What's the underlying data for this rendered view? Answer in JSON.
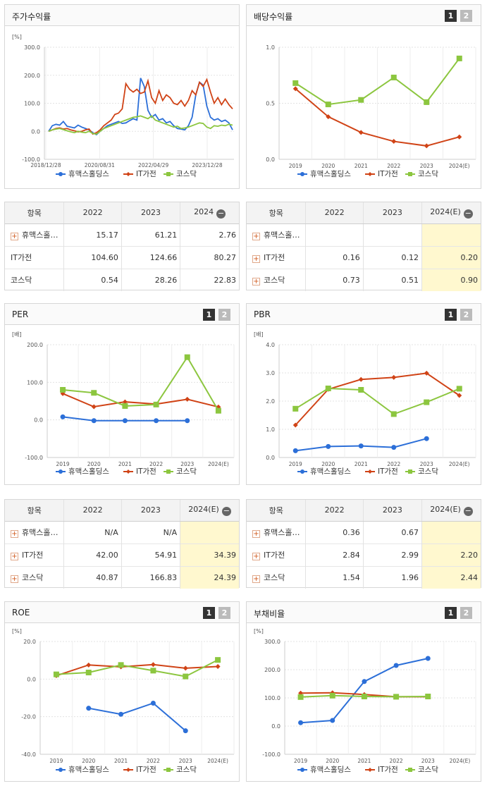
{
  "colors": {
    "humax": "#2c6fd8",
    "it": "#d04316",
    "kosdaq": "#8cc63f"
  },
  "legend": [
    "휴맥스홀딩스",
    "IT가전",
    "코스닥"
  ],
  "pager": [
    "1",
    "2"
  ],
  "minus_icon": "−",
  "plus_icon": "+",
  "panels": {
    "stock": {
      "title": "주가수익률"
    },
    "dividend": {
      "title": "배당수익률"
    },
    "per": {
      "title": "PER"
    },
    "pbr": {
      "title": "PBR"
    },
    "roe": {
      "title": "ROE"
    },
    "debt": {
      "title": "부채비율"
    }
  },
  "tables": {
    "stock": {
      "headers": [
        "항목",
        "2022",
        "2023",
        "2024"
      ],
      "rows": [
        {
          "name": "휴맥스홀…",
          "plus": true,
          "values": [
            "15.17",
            "61.21",
            "2.76"
          ]
        },
        {
          "name": "IT가전",
          "plus": false,
          "values": [
            "104.60",
            "124.66",
            "80.27"
          ]
        },
        {
          "name": "코스닥",
          "plus": false,
          "values": [
            "0.54",
            "28.26",
            "22.83"
          ]
        }
      ],
      "highlight": false
    },
    "dividend": {
      "headers": [
        "항목",
        "2022",
        "2023",
        "2024(E)"
      ],
      "rows": [
        {
          "name": "휴맥스홀…",
          "plus": true,
          "values": [
            "",
            "",
            ""
          ]
        },
        {
          "name": "IT가전",
          "plus": true,
          "values": [
            "0.16",
            "0.12",
            "0.20"
          ]
        },
        {
          "name": "코스닥",
          "plus": true,
          "values": [
            "0.73",
            "0.51",
            "0.90"
          ]
        }
      ],
      "highlight": true
    },
    "per": {
      "headers": [
        "항목",
        "2022",
        "2023",
        "2024(E)"
      ],
      "rows": [
        {
          "name": "휴맥스홀…",
          "plus": true,
          "values": [
            "N/A",
            "N/A",
            ""
          ]
        },
        {
          "name": "IT가전",
          "plus": true,
          "values": [
            "42.00",
            "54.91",
            "34.39"
          ]
        },
        {
          "name": "코스닥",
          "plus": true,
          "values": [
            "40.87",
            "166.83",
            "24.39"
          ]
        }
      ],
      "highlight": true
    },
    "pbr": {
      "headers": [
        "항목",
        "2022",
        "2023",
        "2024(E)"
      ],
      "rows": [
        {
          "name": "휴맥스홀…",
          "plus": true,
          "values": [
            "0.36",
            "0.67",
            ""
          ]
        },
        {
          "name": "IT가전",
          "plus": true,
          "values": [
            "2.84",
            "2.99",
            "2.20"
          ]
        },
        {
          "name": "코스닥",
          "plus": true,
          "values": [
            "1.54",
            "1.96",
            "2.44"
          ]
        }
      ],
      "highlight": true
    }
  },
  "chart_data": [
    {
      "id": "stock",
      "type": "line",
      "ylabel": "[%]",
      "yticks": [
        "300.0",
        "200.0",
        "100.0",
        "0.0",
        "-100.0"
      ],
      "ylim": [
        -100,
        300
      ],
      "xticks": [
        "2018/12/28",
        "2020/08/31",
        "2022/04/29",
        "2023/12/28"
      ],
      "series": [
        {
          "name": "휴맥스홀딩스",
          "values": [
            0,
            20,
            25,
            22,
            35,
            18,
            15,
            12,
            22,
            15,
            10,
            5,
            -5,
            -12,
            0,
            10,
            20,
            25,
            30,
            35,
            28,
            30,
            38,
            45,
            40,
            190,
            160,
            75,
            50,
            60,
            40,
            45,
            30,
            35,
            20,
            10,
            8,
            5,
            20,
            50,
            130,
            175,
            165,
            90,
            50,
            40,
            45,
            35,
            40,
            30,
            5
          ]
        },
        {
          "name": "IT가전",
          "values": [
            0,
            5,
            10,
            12,
            8,
            10,
            5,
            2,
            -2,
            0,
            5,
            8,
            -10,
            -5,
            5,
            20,
            30,
            40,
            60,
            65,
            80,
            170,
            150,
            140,
            150,
            135,
            140,
            180,
            120,
            100,
            145,
            110,
            130,
            120,
            100,
            95,
            110,
            90,
            110,
            145,
            130,
            175,
            160,
            185,
            140,
            100,
            120,
            95,
            115,
            95,
            80
          ]
        },
        {
          "name": "코스닥",
          "values": [
            0,
            5,
            8,
            10,
            6,
            2,
            -2,
            -5,
            0,
            -3,
            -5,
            0,
            -8,
            -10,
            0,
            10,
            15,
            20,
            25,
            30,
            35,
            40,
            45,
            50,
            52,
            55,
            50,
            45,
            55,
            40,
            35,
            30,
            25,
            20,
            15,
            18,
            10,
            12,
            15,
            20,
            25,
            30,
            28,
            15,
            10,
            20,
            18,
            22,
            20,
            25,
            22
          ]
        }
      ]
    },
    {
      "id": "dividend",
      "type": "line",
      "yticks": [
        "1.0",
        "0.5",
        "0.0"
      ],
      "ylim": [
        0,
        1
      ],
      "categories": [
        "2019",
        "2020",
        "2021",
        "2022",
        "2023",
        "2024(E)"
      ],
      "series": [
        {
          "name": "휴맥스홀딩스",
          "values": [
            null,
            null,
            null,
            null,
            null,
            null
          ]
        },
        {
          "name": "IT가전",
          "values": [
            0.63,
            0.38,
            0.24,
            0.16,
            0.12,
            0.2
          ]
        },
        {
          "name": "코스닥",
          "values": [
            0.68,
            0.49,
            0.53,
            0.73,
            0.51,
            0.9
          ]
        }
      ]
    },
    {
      "id": "per",
      "type": "line",
      "ylabel": "[배]",
      "yticks": [
        "200.0",
        "100.0",
        "0.0",
        "-100.0"
      ],
      "ylim": [
        -100,
        200
      ],
      "categories": [
        "2019",
        "2020",
        "2021",
        "2022",
        "2023",
        "2024(E)"
      ],
      "series": [
        {
          "name": "휴맥스홀딩스",
          "values": [
            8,
            -2,
            -2,
            -2,
            -2,
            null
          ]
        },
        {
          "name": "IT가전",
          "values": [
            70,
            35,
            48,
            42,
            54.91,
            34.39
          ]
        },
        {
          "name": "코스닥",
          "values": [
            80,
            72,
            37,
            40.87,
            166.83,
            24.39
          ]
        }
      ]
    },
    {
      "id": "pbr",
      "type": "line",
      "ylabel": "[배]",
      "yticks": [
        "4.0",
        "3.0",
        "2.0",
        "1.0",
        "0.0"
      ],
      "ylim": [
        0,
        4
      ],
      "categories": [
        "2019",
        "2020",
        "2021",
        "2022",
        "2023",
        "2024(E)"
      ],
      "series": [
        {
          "name": "휴맥스홀딩스",
          "values": [
            0.24,
            0.39,
            0.41,
            0.36,
            0.67,
            null
          ]
        },
        {
          "name": "IT가전",
          "values": [
            1.15,
            2.42,
            2.77,
            2.84,
            2.99,
            2.2
          ]
        },
        {
          "name": "코스닥",
          "values": [
            1.73,
            2.45,
            2.4,
            1.54,
            1.96,
            2.44
          ]
        }
      ]
    },
    {
      "id": "roe",
      "type": "line",
      "ylabel": "[%]",
      "yticks": [
        "20.0",
        "0.0",
        "-20.0",
        "-40.0"
      ],
      "ylim": [
        -40,
        20
      ],
      "categories": [
        "2019",
        "2020",
        "2021",
        "2022",
        "2023",
        "2024(E)"
      ],
      "series": [
        {
          "name": "휴맥스홀딩스",
          "values": [
            null,
            -15.5,
            -18.7,
            -12.8,
            -27.5,
            null
          ]
        },
        {
          "name": "IT가전",
          "values": [
            1.8,
            7.5,
            6.5,
            7.7,
            5.8,
            6.7
          ]
        },
        {
          "name": "코스닥",
          "values": [
            2.5,
            3.5,
            7.5,
            4.5,
            1.4,
            10.2
          ]
        }
      ]
    },
    {
      "id": "debt",
      "type": "line",
      "ylabel": "[%]",
      "yticks": [
        "300.0",
        "200.0",
        "100.0",
        "0.0",
        "-100.0"
      ],
      "ylim": [
        -100,
        300
      ],
      "categories": [
        "2019",
        "2020",
        "2021",
        "2022",
        "2023",
        "2024(E)"
      ],
      "series": [
        {
          "name": "휴맥스홀딩스",
          "values": [
            12,
            20,
            158,
            215,
            240,
            null
          ]
        },
        {
          "name": "IT가전",
          "values": [
            117,
            118,
            112,
            104,
            104,
            null
          ]
        },
        {
          "name": "코스닥",
          "values": [
            103,
            108,
            105,
            104,
            105,
            null
          ]
        }
      ]
    }
  ]
}
